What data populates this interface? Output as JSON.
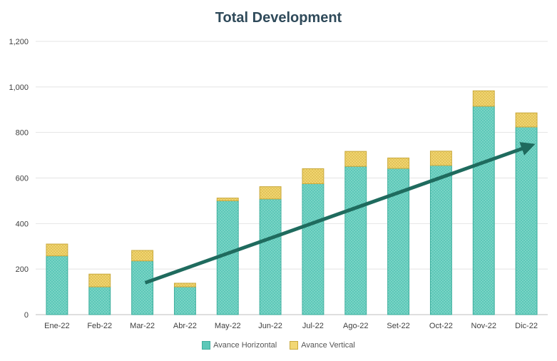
{
  "chart_data": {
    "type": "bar",
    "stacked": true,
    "title": "Total Development",
    "xlabel": "",
    "ylabel": "",
    "categories": [
      "Ene-22",
      "Feb-22",
      "Mar-22",
      "Abr-22",
      "May-22",
      "Jun-22",
      "Jul-22",
      "Ago-22",
      "Set-22",
      "Oct-22",
      "Nov-22",
      "Dic-22"
    ],
    "series": [
      {
        "name": "Avance Horizontal",
        "color": "#5cc8b8",
        "values": [
          258,
          122,
          236,
          122,
          500,
          508,
          575,
          651,
          642,
          655,
          915,
          824
        ]
      },
      {
        "name": "Avance Vertical",
        "color": "#f2d774",
        "values": [
          52,
          56,
          46,
          16,
          12,
          54,
          66,
          66,
          46,
          63,
          68,
          62
        ]
      }
    ],
    "ylim": [
      0,
      1200
    ],
    "yticks": [
      0,
      200,
      400,
      600,
      800,
      1000,
      1200
    ],
    "ytick_labels": [
      "0",
      "200",
      "400",
      "600",
      "800",
      "1,000",
      "1,200"
    ],
    "grid": true,
    "legend_position": "bottom",
    "annotations": [
      {
        "type": "trend-arrow",
        "color": "#1f6b5e",
        "from": {
          "x": "Mar-22",
          "y": 140
        },
        "to": {
          "x": "Dic-22",
          "y": 740
        }
      }
    ]
  }
}
